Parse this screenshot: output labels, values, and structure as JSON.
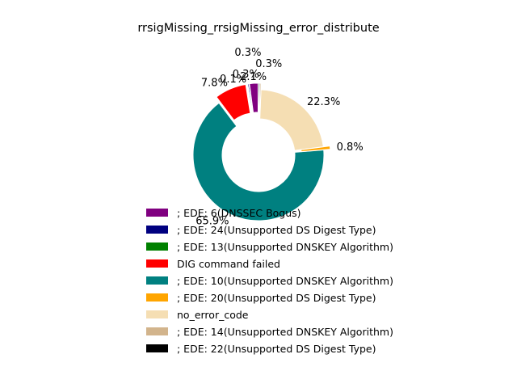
{
  "chart_data": {
    "type": "pie",
    "title": "rrsigMissing_rrsigMissing_error_distribute",
    "xlabel": "",
    "ylabel": "",
    "donut": true,
    "legend_placement": "below",
    "slices": [
      {
        "label": "; EDE: 6(DNSSEC Bogus)",
        "value": 2.1,
        "pct_label": "2.1%",
        "color": "#800080",
        "exploded": true
      },
      {
        "label": "; EDE: 24(Unsupported DS Digest Type)",
        "value": 0.3,
        "pct_label": "0.3%",
        "color": "#000080",
        "exploded": true
      },
      {
        "label": "; EDE: 13(Unsupported DNSKEY Algorithm)",
        "value": 0.1,
        "pct_label": "0.1%",
        "color": "#008000",
        "exploded": true
      },
      {
        "label": "DIG command failed",
        "value": 7.8,
        "pct_label": "7.8%",
        "color": "#ff0000",
        "exploded": true
      },
      {
        "label": "; EDE: 10(Unsupported DNSKEY Algorithm)",
        "value": 65.9,
        "pct_label": "65.9%",
        "color": "#008080",
        "exploded": false
      },
      {
        "label": "; EDE: 20(Unsupported DS Digest Type)",
        "value": 0.8,
        "pct_label": "0.8%",
        "color": "#ffa500",
        "exploded": true
      },
      {
        "label": "no_error_code",
        "value": 22.3,
        "pct_label": "22.3%",
        "color": "#f5deb3",
        "exploded": false
      },
      {
        "label": "; EDE: 14(Unsupported DNSKEY Algorithm)",
        "value": 0.3,
        "pct_label": "0.3%",
        "color": "#d2b48c",
        "exploded": true
      },
      {
        "label": "; EDE: 22(Unsupported DS Digest Type)",
        "value": 0.3,
        "pct_label": "0.3%",
        "color": "#000000",
        "exploded": true
      }
    ]
  }
}
